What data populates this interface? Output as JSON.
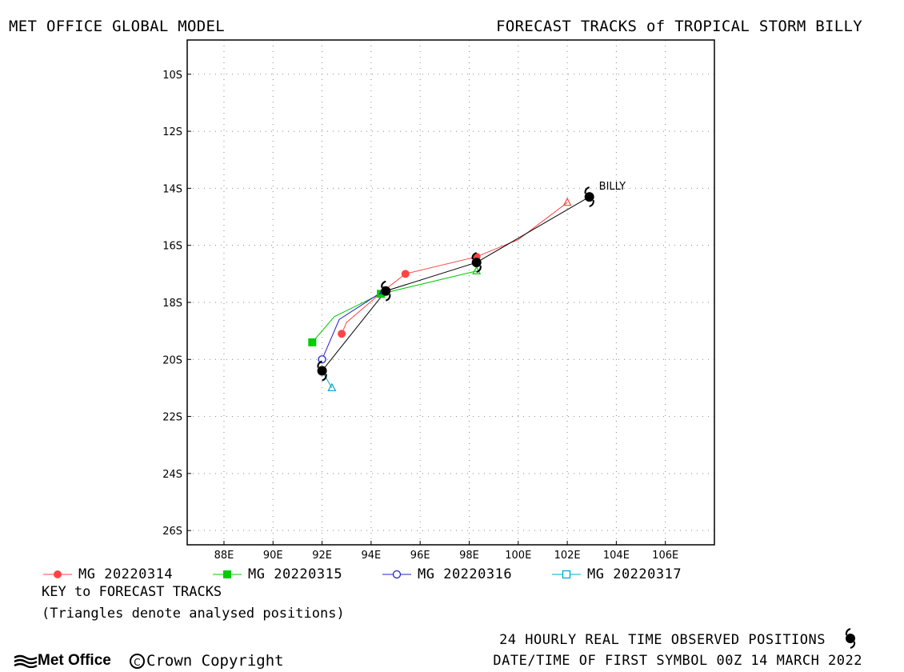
{
  "header": {
    "left": "MET OFFICE GLOBAL MODEL",
    "right": "FORECAST TRACKS of TROPICAL STORM BILLY"
  },
  "map": {
    "lon_range": [
      86.5,
      108
    ],
    "lat_range": [
      -26.5,
      -8.8
    ],
    "lon_ticks": [
      "88E",
      "90E",
      "92E",
      "94E",
      "96E",
      "98E",
      "100E",
      "102E",
      "104E",
      "106E"
    ],
    "lat_ticks": [
      "10S",
      "12S",
      "14S",
      "16S",
      "18S",
      "20S",
      "22S",
      "24S",
      "26S"
    ],
    "grid": "dotted",
    "storm_label": "BILLY"
  },
  "chart_data": {
    "type": "scatter",
    "xlabel": "",
    "ylabel": "",
    "xlim": [
      86.5,
      108
    ],
    "ylim": [
      -26.5,
      -8.8
    ],
    "series": [
      {
        "name": "MG 20220314",
        "color": "#ff4444",
        "marker": "filled-circle",
        "points": [
          [
            102.0,
            -14.5
          ],
          [
            100.0,
            -15.8
          ],
          [
            98.3,
            -16.4
          ],
          [
            95.4,
            -17.0
          ],
          [
            94.5,
            -17.6
          ],
          [
            93.0,
            -18.7
          ],
          [
            92.8,
            -19.1
          ]
        ],
        "markers_at": [
          2,
          3,
          6
        ],
        "analysed_at": 0
      },
      {
        "name": "MG 20220315",
        "color": "#00cc00",
        "marker": "filled-square",
        "points": [
          [
            98.3,
            -16.9
          ],
          [
            94.4,
            -17.7
          ],
          [
            92.5,
            -18.5
          ],
          [
            91.6,
            -19.4
          ]
        ],
        "markers_at": [
          1,
          3
        ],
        "analysed_at": 0
      },
      {
        "name": "MG 20220316",
        "color": "#2222cc",
        "marker": "open-circle",
        "points": [
          [
            94.5,
            -17.6
          ],
          [
            92.7,
            -18.6
          ],
          [
            92.0,
            -20.0
          ]
        ],
        "markers_at": [
          2
        ],
        "analysed_at": 0
      },
      {
        "name": "MG 20220317",
        "color": "#00aacc",
        "marker": "open-square",
        "points": [
          [
            92.0,
            -20.4
          ],
          [
            92.4,
            -21.0
          ]
        ],
        "markers_at": [],
        "analysed_at": 1
      },
      {
        "name": "",
        "color": "#000000",
        "marker": "storm-symbol",
        "points": [
          [
            102.9,
            -14.3
          ],
          [
            98.3,
            -16.6
          ],
          [
            94.6,
            -17.6
          ],
          [
            92.0,
            -20.4
          ]
        ],
        "markers_at": [
          0,
          1,
          2,
          3
        ],
        "analysed_at": -1
      }
    ]
  },
  "legend": [
    {
      "label": "MG 20220314",
      "color": "#ff4444",
      "marker": "filled-circle"
    },
    {
      "label": "MG 20220315",
      "color": "#00cc00",
      "marker": "filled-square"
    },
    {
      "label": "MG 20220316",
      "color": "#2222cc",
      "marker": "open-circle"
    },
    {
      "label": "MG 20220317",
      "color": "#00aacc",
      "marker": "open-square"
    }
  ],
  "key": {
    "title": "KEY to FORECAST TRACKS",
    "note": "(Triangles denote analysed positions)"
  },
  "footer": {
    "observed": "24 HOURLY REAL TIME OBSERVED POSITIONS",
    "date": "DATE/TIME OF FIRST SYMBOL 00Z 14 MARCH 2022",
    "brand": "Met Office",
    "copyright": "Crown Copyright"
  }
}
